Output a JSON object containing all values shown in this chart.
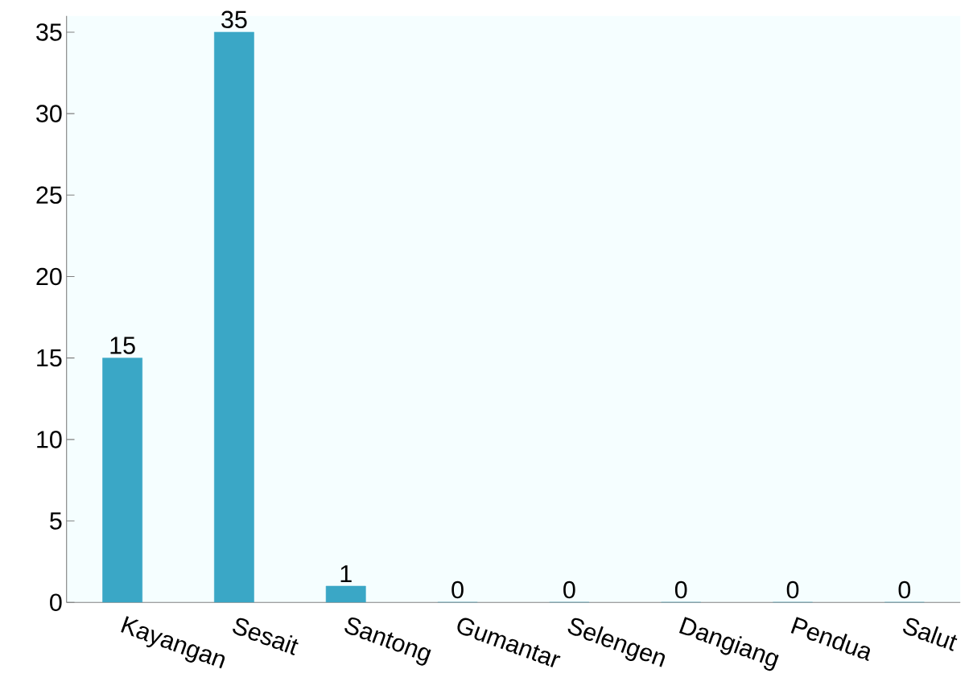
{
  "chart_data": {
    "type": "bar",
    "categories": [
      "Kayangan",
      "Sesait",
      "Santong",
      "Gumantar",
      "Selengen",
      "Dangiang",
      "Pendua",
      "Salut"
    ],
    "values": [
      15,
      35,
      1,
      0,
      0,
      0,
      0,
      0
    ],
    "color": "#3aa7c6",
    "ylim": [
      0,
      36
    ],
    "yticks": [
      0,
      5,
      10,
      15,
      20,
      25,
      30,
      35
    ],
    "data_labels": true,
    "grid": false
  }
}
